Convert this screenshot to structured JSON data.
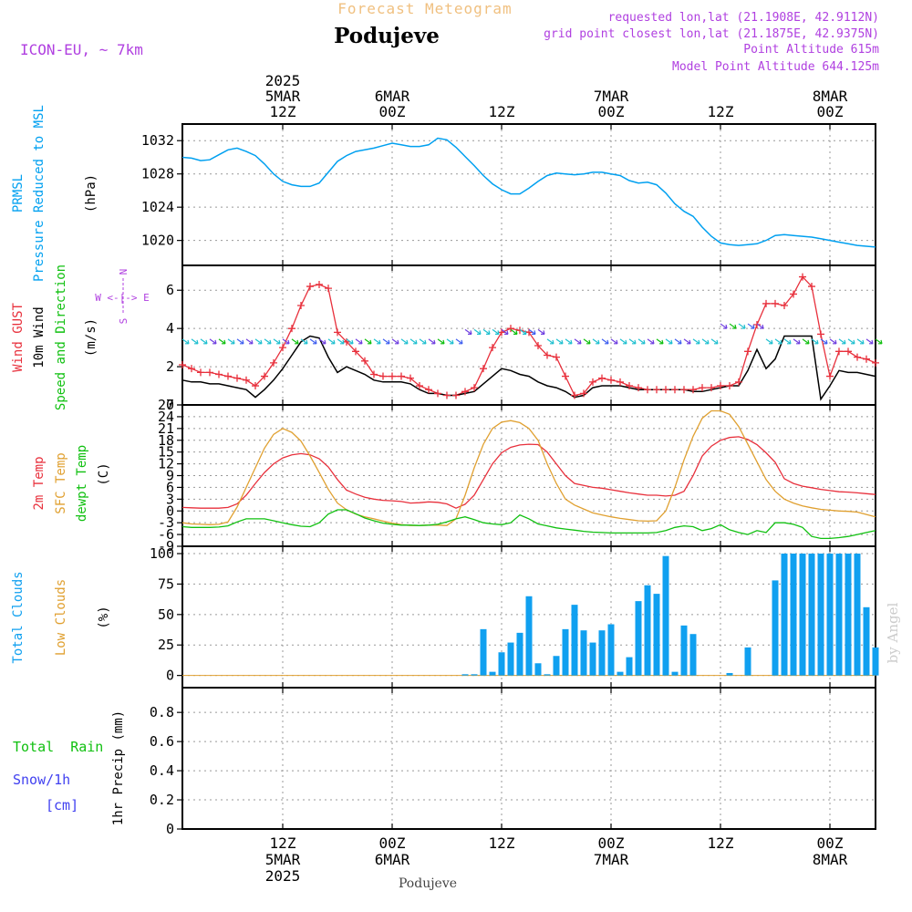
{
  "header": {
    "forecast_title": "Forecast Meteogram",
    "station": "Podujeve",
    "model": "ICON-EU, ~ 7km",
    "requested": "requested lon,lat (21.1908E, 42.9112N)",
    "grid_point": "grid point closest lon,lat (21.1875E, 42.9375N)",
    "point_altitude": "Point Altitude 615m",
    "model_altitude": "Model Point Altitude 644.125m",
    "footer_station": "Podujeve",
    "watermark": "by Angel"
  },
  "colors": {
    "pressure": "#00a0f0",
    "gust": "#e8303c",
    "wind": "#000000",
    "temp2m": "#e8303c",
    "sfc": "#e0a030",
    "dewpt": "#10c010",
    "clouds": "#10a0f0",
    "low_clouds": "#e0a030",
    "header_orange": "#f0c080",
    "header_purple": "#b040e0",
    "rain_green": "#10c010",
    "snow_blue": "#4040f0"
  },
  "time_axis": {
    "start_hour": 0,
    "end_hour": 76,
    "top_labels": [
      {
        "hour": 11,
        "lines": [
          "2025",
          "5MAR",
          "12Z"
        ]
      },
      {
        "hour": 23,
        "lines": [
          "6MAR",
          "00Z"
        ]
      },
      {
        "hour": 35,
        "lines": [
          "12Z"
        ]
      },
      {
        "hour": 47,
        "lines": [
          "7MAR",
          "00Z"
        ]
      },
      {
        "hour": 59,
        "lines": [
          "12Z"
        ]
      },
      {
        "hour": 71,
        "lines": [
          "8MAR",
          "00Z"
        ]
      }
    ],
    "bottom_labels": [
      {
        "hour": 11,
        "lines": [
          "12Z",
          "5MAR",
          "2025"
        ]
      },
      {
        "hour": 23,
        "lines": [
          "00Z",
          "6MAR"
        ]
      },
      {
        "hour": 35,
        "lines": [
          "12Z"
        ]
      },
      {
        "hour": 47,
        "lines": [
          "00Z",
          "7MAR"
        ]
      },
      {
        "hour": 59,
        "lines": [
          "12Z"
        ]
      },
      {
        "hour": 71,
        "lines": [
          "00Z",
          "8MAR"
        ]
      }
    ]
  },
  "panels": {
    "pressure": {
      "label1": "PRMSL",
      "label2": "Pressure Reduced to MSL",
      "unit": "(hPa)"
    },
    "wind": {
      "gust_label": "Wind GUST",
      "wind_label": "10m Wind",
      "dir_label": "Speed and Direction",
      "unit": "(m/s)",
      "compass_we": "W <-|-> E",
      "compass_n": "N",
      "compass_s": "S"
    },
    "temp": {
      "t2m_label": "2m Temp",
      "sfc_label": "SFC Temp",
      "dew_label": "dewpt Temp",
      "unit": "(C)"
    },
    "clouds": {
      "total_label": "Total Clouds",
      "low_label": "Low Clouds",
      "unit": "(%)"
    },
    "precip": {
      "rain_label": "Total  Rain",
      "snow_label": "Snow/1h",
      "cm_label": "[cm]",
      "unit": "1hr Precip (mm)"
    }
  },
  "chart_data": [
    {
      "type": "line",
      "name": "pressure",
      "title": "PRMSL Pressure Reduced to MSL",
      "ylabel": "(hPa)",
      "ylim": [
        1017,
        1034
      ],
      "yticks": [
        1020,
        1024,
        1028,
        1032
      ],
      "x": [
        0,
        1,
        2,
        3,
        4,
        5,
        6,
        7,
        8,
        9,
        10,
        11,
        12,
        13,
        14,
        15,
        16,
        17,
        18,
        19,
        20,
        21,
        22,
        23,
        24,
        25,
        26,
        27,
        28,
        29,
        30,
        31,
        32,
        33,
        34,
        35,
        36,
        37,
        38,
        39,
        40,
        41,
        42,
        43,
        44,
        45,
        46,
        47,
        48,
        49,
        50,
        51,
        52,
        53,
        54,
        55,
        56,
        57,
        58,
        59,
        60,
        61,
        62,
        63,
        64,
        65,
        66,
        67,
        68,
        69,
        70,
        71,
        72,
        73,
        74,
        75,
        76
      ],
      "values": [
        1030.0,
        1029.9,
        1029.6,
        1029.7,
        1030.3,
        1030.9,
        1031.1,
        1030.7,
        1030.2,
        1029.2,
        1028.0,
        1027.1,
        1026.7,
        1026.5,
        1026.5,
        1026.9,
        1028.2,
        1029.5,
        1030.2,
        1030.7,
        1030.9,
        1031.1,
        1031.4,
        1031.7,
        1031.5,
        1031.3,
        1031.3,
        1031.5,
        1032.3,
        1032.1,
        1031.2,
        1030.1,
        1029.0,
        1027.8,
        1026.8,
        1026.1,
        1025.6,
        1025.6,
        1026.3,
        1027.1,
        1027.8,
        1028.1,
        1028.0,
        1027.9,
        1028.0,
        1028.2,
        1028.2,
        1028.0,
        1027.8,
        1027.2,
        1026.9,
        1027.0,
        1026.7,
        1025.7,
        1024.4,
        1023.5,
        1022.9,
        1021.6,
        1020.5,
        1019.7,
        1019.5,
        1019.4,
        1019.5,
        1019.6,
        1020.0,
        1020.6,
        1020.7,
        1020.6,
        1020.5,
        1020.4,
        1020.2,
        1020.0,
        1019.8,
        1019.6,
        1019.4,
        1019.3,
        1019.2
      ]
    },
    {
      "type": "line",
      "name": "wind",
      "title": "Wind GUST / 10m Wind Speed and Direction",
      "ylabel": "(m/s)",
      "ylim": [
        0,
        7.3
      ],
      "yticks": [
        0,
        2,
        4,
        6
      ],
      "x": [
        0,
        1,
        2,
        3,
        4,
        5,
        6,
        7,
        8,
        9,
        10,
        11,
        12,
        13,
        14,
        15,
        16,
        17,
        18,
        19,
        20,
        21,
        22,
        23,
        24,
        25,
        26,
        27,
        28,
        29,
        30,
        31,
        32,
        33,
        34,
        35,
        36,
        37,
        38,
        39,
        40,
        41,
        42,
        43,
        44,
        45,
        46,
        47,
        48,
        49,
        50,
        51,
        52,
        53,
        54,
        55,
        56,
        57,
        58,
        59,
        60,
        61,
        62,
        63,
        64,
        65,
        66,
        67,
        68,
        69,
        70,
        71,
        72,
        73,
        74,
        75,
        76
      ],
      "series": [
        {
          "name": "Wind GUST",
          "values": [
            2.1,
            1.9,
            1.7,
            1.7,
            1.6,
            1.5,
            1.4,
            1.3,
            1.0,
            1.5,
            2.2,
            3.0,
            4.0,
            5.2,
            6.2,
            6.3,
            6.1,
            3.8,
            3.3,
            2.8,
            2.3,
            1.6,
            1.5,
            1.5,
            1.5,
            1.4,
            1.0,
            0.8,
            0.6,
            0.5,
            0.5,
            0.7,
            0.9,
            1.9,
            3.0,
            3.8,
            4.0,
            3.9,
            3.8,
            3.1,
            2.6,
            2.5,
            1.5,
            0.5,
            0.6,
            1.2,
            1.4,
            1.3,
            1.2,
            1.0,
            0.9,
            0.8,
            0.8,
            0.8,
            0.8,
            0.8,
            0.8,
            0.9,
            0.9,
            1.0,
            1.0,
            1.2,
            2.8,
            4.2,
            5.3,
            5.3,
            5.2,
            5.8,
            6.7,
            6.2,
            3.7,
            1.5,
            2.8,
            2.8,
            2.5,
            2.4,
            2.2
          ]
        },
        {
          "name": "10m Wind",
          "values": [
            1.3,
            1.2,
            1.2,
            1.1,
            1.1,
            1.0,
            0.9,
            0.8,
            0.4,
            0.8,
            1.3,
            1.9,
            2.6,
            3.3,
            3.6,
            3.5,
            2.5,
            1.7,
            2.0,
            1.8,
            1.6,
            1.3,
            1.2,
            1.2,
            1.2,
            1.1,
            0.8,
            0.6,
            0.6,
            0.5,
            0.5,
            0.6,
            0.7,
            1.1,
            1.5,
            1.9,
            1.8,
            1.6,
            1.5,
            1.2,
            1.0,
            0.9,
            0.7,
            0.4,
            0.5,
            0.9,
            1.0,
            1.0,
            1.0,
            0.9,
            0.8,
            0.8,
            0.8,
            0.8,
            0.8,
            0.8,
            0.7,
            0.7,
            0.8,
            0.9,
            1.0,
            1.0,
            1.8,
            2.9,
            1.9,
            2.4,
            3.6,
            3.6,
            3.6,
            3.6,
            0.3,
            1.0,
            1.8,
            1.7,
            1.7,
            1.6,
            1.5
          ]
        }
      ]
    },
    {
      "type": "line",
      "name": "temperature",
      "title": "2m Temp / SFC Temp / dewpt Temp",
      "ylabel": "(C)",
      "ylim": [
        -9,
        27
      ],
      "yticks": [
        -9,
        -6,
        -3,
        0,
        3,
        6,
        9,
        12,
        15,
        18,
        21,
        24,
        27
      ],
      "x": [
        0,
        1,
        2,
        3,
        4,
        5,
        6,
        7,
        8,
        9,
        10,
        11,
        12,
        13,
        14,
        15,
        16,
        17,
        18,
        19,
        20,
        21,
        22,
        23,
        24,
        25,
        26,
        27,
        28,
        29,
        30,
        31,
        32,
        33,
        34,
        35,
        36,
        37,
        38,
        39,
        40,
        41,
        42,
        43,
        44,
        45,
        46,
        47,
        48,
        49,
        50,
        51,
        52,
        53,
        54,
        55,
        56,
        57,
        58,
        59,
        60,
        61,
        62,
        63,
        64,
        65,
        66,
        67,
        68,
        69,
        70,
        71,
        72,
        73,
        74,
        75,
        76
      ],
      "series": [
        {
          "name": "2m Temp",
          "values": [
            0.9,
            0.8,
            0.7,
            0.7,
            0.7,
            0.9,
            1.8,
            4.0,
            7.0,
            9.8,
            12.0,
            13.5,
            14.3,
            14.6,
            14.3,
            13.3,
            11.2,
            8.0,
            5.3,
            4.3,
            3.5,
            3.0,
            2.7,
            2.6,
            2.4,
            2.0,
            2.1,
            2.3,
            2.2,
            1.8,
            0.7,
            1.7,
            4.0,
            8.0,
            12.0,
            14.8,
            16.2,
            16.8,
            17.0,
            16.9,
            15.0,
            12.0,
            9.0,
            7.0,
            6.5,
            6.0,
            5.8,
            5.4,
            5.0,
            4.6,
            4.3,
            4.0,
            4.0,
            3.8,
            4.0,
            5.0,
            9.0,
            14.0,
            16.5,
            18.0,
            18.7,
            18.9,
            18.2,
            16.9,
            14.8,
            12.4,
            8.2,
            7.0,
            6.3,
            5.9,
            5.5,
            5.2,
            4.9,
            4.8,
            4.6,
            4.4,
            4.2
          ]
        },
        {
          "name": "SFC Temp",
          "values": [
            -3.0,
            -3.3,
            -3.4,
            -3.5,
            -3.4,
            -2.8,
            1.0,
            6.0,
            11.0,
            16.0,
            19.5,
            21.0,
            20.0,
            17.8,
            14.0,
            9.8,
            5.5,
            2.0,
            0.3,
            -0.8,
            -1.5,
            -2.0,
            -2.6,
            -3.1,
            -3.5,
            -3.7,
            -3.7,
            -3.6,
            -3.6,
            -3.7,
            -2.0,
            4.0,
            11.0,
            17.0,
            21.0,
            22.6,
            23.0,
            22.5,
            21.0,
            18.0,
            12.0,
            7.0,
            3.0,
            1.5,
            0.5,
            -0.5,
            -1.0,
            -1.5,
            -1.9,
            -2.2,
            -2.5,
            -2.6,
            -2.5,
            0.0,
            6.0,
            13.0,
            19.0,
            23.6,
            25.5,
            25.5,
            24.6,
            21.5,
            17.0,
            12.5,
            8.0,
            5.0,
            3.0,
            2.0,
            1.3,
            0.8,
            0.4,
            0.2,
            0.0,
            -0.1,
            -0.3,
            -0.9,
            -1.5
          ]
        },
        {
          "name": "dewpt Temp",
          "values": [
            -4.0,
            -4.2,
            -4.2,
            -4.2,
            -4.1,
            -3.8,
            -2.8,
            -2.0,
            -2.0,
            -2.0,
            -2.5,
            -3.0,
            -3.5,
            -3.9,
            -4.0,
            -3.0,
            -0.8,
            0.3,
            0.3,
            -0.7,
            -1.8,
            -2.5,
            -3.1,
            -3.4,
            -3.6,
            -3.6,
            -3.7,
            -3.6,
            -3.4,
            -2.8,
            -2.0,
            -1.5,
            -2.2,
            -3.0,
            -3.3,
            -3.5,
            -3.0,
            -1.0,
            -2.0,
            -3.3,
            -3.8,
            -4.3,
            -4.6,
            -4.9,
            -5.2,
            -5.4,
            -5.5,
            -5.6,
            -5.6,
            -5.6,
            -5.6,
            -5.6,
            -5.5,
            -5.0,
            -4.2,
            -3.8,
            -4.0,
            -5.0,
            -4.5,
            -3.5,
            -4.8,
            -5.5,
            -6.0,
            -5.0,
            -5.5,
            -3.0,
            -3.0,
            -3.4,
            -4.2,
            -6.5,
            -7.0,
            -7.0,
            -6.8,
            -6.5,
            -6.0,
            -5.5,
            -5.0
          ]
        }
      ]
    },
    {
      "type": "bar",
      "name": "clouds",
      "title": "Total Clouds / Low Clouds",
      "ylabel": "(%)",
      "ylim": [
        -10,
        106
      ],
      "yticks": [
        0,
        25,
        50,
        75,
        100
      ],
      "x": [
        0,
        1,
        2,
        3,
        4,
        5,
        6,
        7,
        8,
        9,
        10,
        11,
        12,
        13,
        14,
        15,
        16,
        17,
        18,
        19,
        20,
        21,
        22,
        23,
        24,
        25,
        26,
        27,
        28,
        29,
        30,
        31,
        32,
        33,
        34,
        35,
        36,
        37,
        38,
        39,
        40,
        41,
        42,
        43,
        44,
        45,
        46,
        47,
        48,
        49,
        50,
        51,
        52,
        53,
        54,
        55,
        56,
        57,
        58,
        59,
        60,
        61,
        62,
        63,
        64,
        65,
        66,
        67,
        68,
        69,
        70,
        71,
        72,
        73,
        74,
        75,
        76
      ],
      "values": [
        0,
        0,
        0,
        0,
        0,
        0,
        0,
        0,
        0,
        0,
        0,
        0,
        0,
        0,
        0,
        0,
        0,
        0,
        0,
        0,
        0,
        0,
        0,
        0,
        0,
        0,
        0,
        0,
        0,
        0,
        0,
        1,
        1,
        38,
        3,
        19,
        27,
        35,
        65,
        10,
        1,
        16,
        38,
        58,
        37,
        27,
        37,
        42,
        3,
        15,
        61,
        74,
        67,
        98,
        3,
        41,
        34,
        0,
        0,
        0,
        2,
        0,
        23,
        0,
        0,
        78,
        100,
        100,
        100,
        100,
        100,
        100,
        100,
        100,
        100,
        56,
        23
      ]
    },
    {
      "type": "bar",
      "name": "precip",
      "title": "1hr Precip",
      "ylabel": "1hr Precip (mm)",
      "ylim": [
        0,
        0.97
      ],
      "yticks": [
        0,
        0.2,
        0.4,
        0.6,
        0.8
      ],
      "ytick_labels": [
        "0",
        "0.2",
        "0.4",
        "0.6",
        "0.8"
      ],
      "values": []
    }
  ]
}
